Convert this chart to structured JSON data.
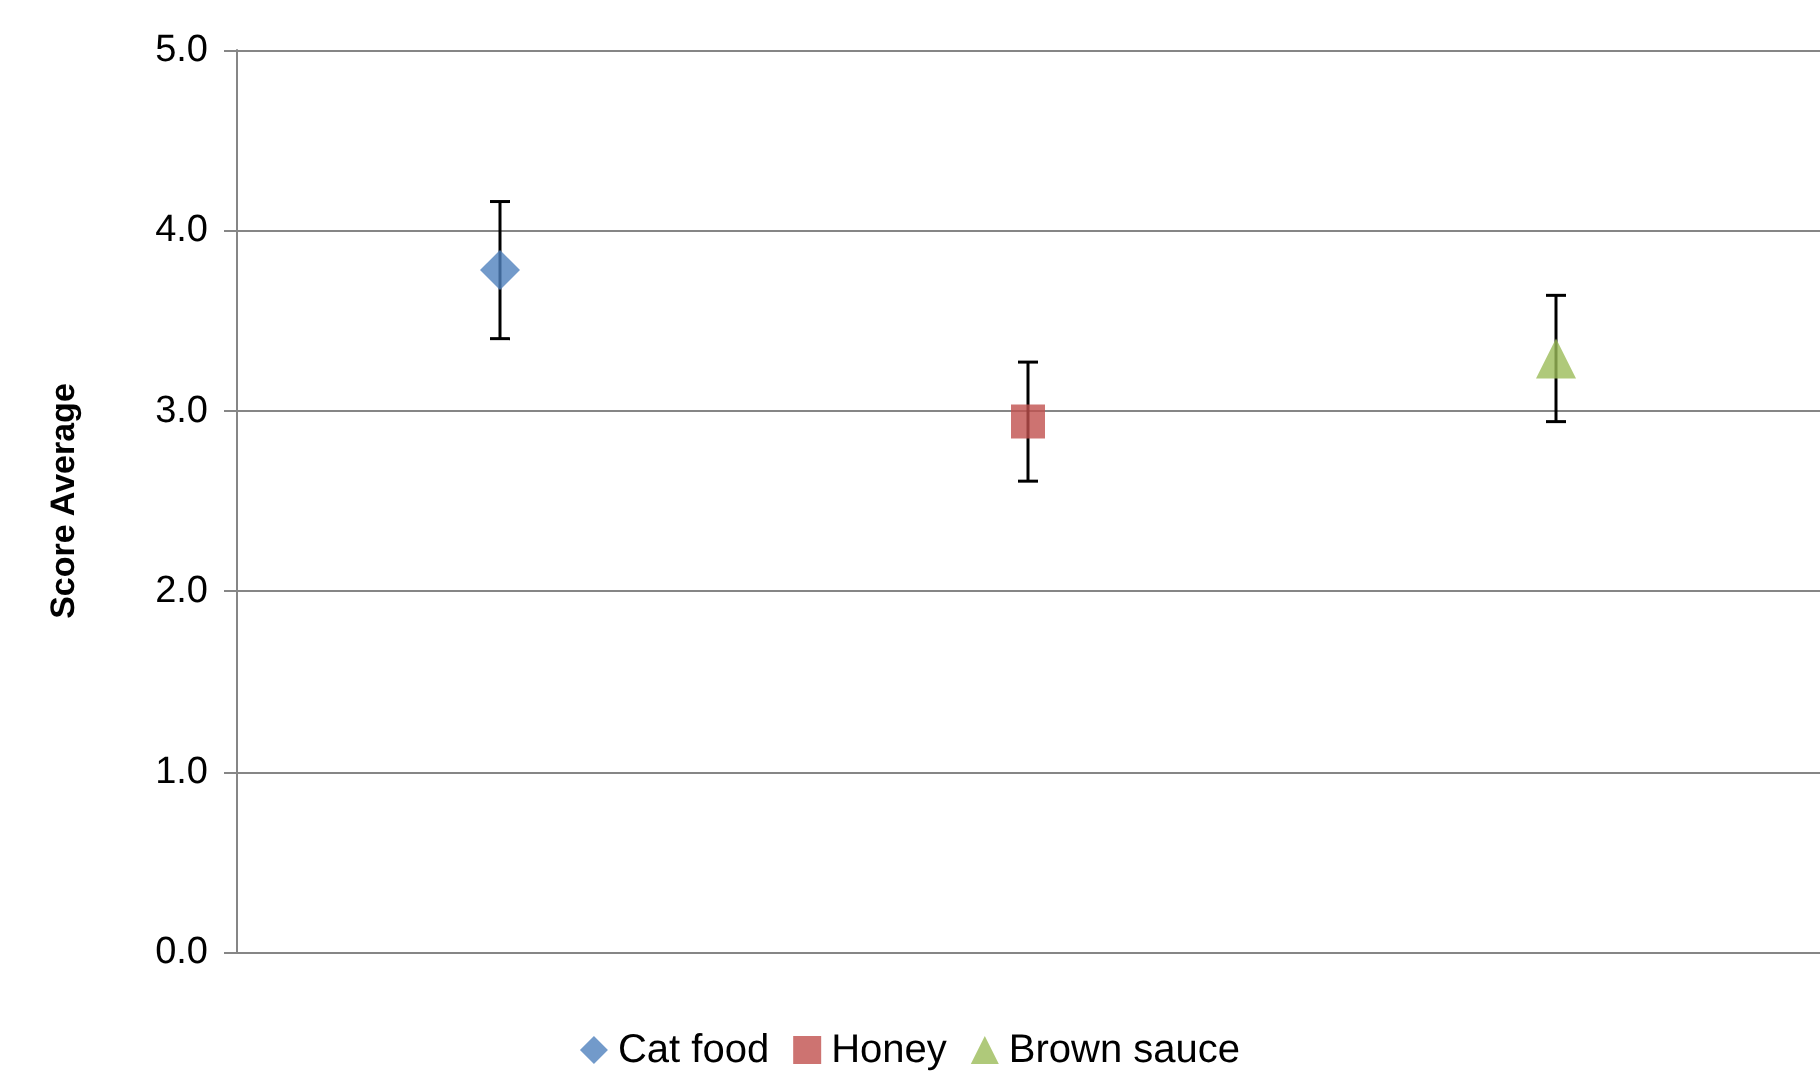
{
  "chart_data": {
    "type": "scatter",
    "ylabel": "Score Average",
    "categories": [
      null,
      null,
      null
    ],
    "series": [
      {
        "name": "Cat food",
        "color": "#4f81bd",
        "marker": "diamond",
        "values": [
          3.78,
          null,
          null
        ],
        "errors": [
          0.38,
          null,
          null
        ]
      },
      {
        "name": "Honey",
        "color": "#c0504d",
        "marker": "square",
        "values": [
          null,
          2.94,
          null
        ],
        "errors": [
          null,
          0.33,
          null
        ]
      },
      {
        "name": "Brown sauce",
        "color": "#9bbb59",
        "marker": "triangle",
        "values": [
          null,
          null,
          3.29
        ],
        "errors": [
          null,
          null,
          0.35
        ]
      }
    ],
    "ylim": [
      0,
      5
    ],
    "yticks": [
      {
        "value": 0,
        "label": "0.0"
      },
      {
        "value": 1,
        "label": "1.0"
      },
      {
        "value": 2,
        "label": "2.0"
      },
      {
        "value": 3,
        "label": "3.0"
      },
      {
        "value": 4,
        "label": "4.0"
      },
      {
        "value": 5,
        "label": "5.0"
      }
    ],
    "grid": "y",
    "legend": "bottom"
  }
}
